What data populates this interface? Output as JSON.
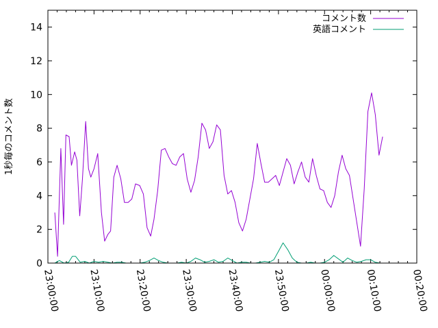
{
  "chart_data": {
    "type": "line",
    "title": "",
    "xlabel": "",
    "ylabel": "1秒毎のコメント数",
    "ylim": [
      0,
      15
    ],
    "yticks": [
      0,
      2,
      4,
      6,
      8,
      10,
      12,
      14
    ],
    "ytick_labels": [
      "0",
      "2",
      "4",
      "6",
      "8",
      "10",
      "12",
      "14"
    ],
    "xlim_minutes": [
      0,
      80
    ],
    "xticks_minutes": [
      0,
      10,
      20,
      30,
      40,
      50,
      60,
      70,
      80
    ],
    "xtick_labels": [
      "23:00:00",
      "23:10:00",
      "23:20:00",
      "23:30:00",
      "23:40:00",
      "23:50:00",
      "00:00:00",
      "00:10:00",
      "00:20:00"
    ],
    "legend_position": "top-right",
    "grid": false,
    "series": [
      {
        "name": "コメント数",
        "color": "#9400d3",
        "x": [
          1.5,
          2.1,
          2.8,
          3.4,
          3.9,
          4.6,
          5.1,
          5.8,
          6.3,
          6.9,
          7.5,
          8.2,
          8.8,
          9.3,
          10.0,
          10.8,
          11.6,
          12.3,
          13.0,
          13.6,
          14.3,
          15.0,
          15.8,
          16.6,
          17.4,
          18.2,
          19.0,
          19.9,
          20.7,
          21.5,
          22.3,
          23.0,
          23.8,
          24.6,
          25.4,
          26.2,
          27.0,
          27.8,
          28.6,
          29.4,
          30.2,
          31.0,
          31.8,
          32.6,
          33.4,
          34.2,
          35.0,
          35.8,
          36.6,
          37.4,
          38.2,
          39.0,
          39.8,
          40.6,
          41.4,
          42.2,
          43.0,
          43.8,
          44.6,
          45.4,
          46.2,
          47.0,
          47.8,
          48.6,
          49.4,
          50.2,
          51.0,
          51.8,
          52.6,
          53.4,
          54.2,
          55.0,
          55.8,
          56.6,
          57.4,
          58.2,
          59.0,
          59.8,
          60.6,
          61.4,
          62.2,
          63.0,
          63.8,
          64.6,
          65.4,
          66.2,
          67.0,
          67.8,
          68.6,
          69.4,
          70.2,
          71.0,
          71.8,
          72.6
        ],
        "values": [
          3.0,
          0.4,
          6.8,
          2.3,
          7.6,
          7.5,
          5.8,
          6.6,
          6.1,
          2.8,
          5.0,
          8.4,
          5.6,
          5.1,
          5.6,
          6.5,
          3.0,
          1.3,
          1.7,
          1.9,
          5.1,
          5.8,
          5.0,
          3.6,
          3.6,
          3.8,
          4.7,
          4.6,
          4.1,
          2.1,
          1.6,
          2.6,
          4.3,
          6.7,
          6.8,
          6.3,
          5.9,
          5.8,
          6.3,
          6.5,
          5.0,
          4.2,
          4.9,
          6.3,
          8.3,
          7.9,
          6.8,
          7.2,
          8.2,
          7.9,
          5.2,
          4.1,
          4.3,
          3.6,
          2.4,
          1.9,
          2.6,
          3.8,
          5.0,
          7.1,
          5.9,
          4.8,
          4.8,
          5.0,
          5.2,
          4.6,
          5.4,
          6.2,
          5.8,
          4.7,
          5.4,
          6.0,
          5.1,
          4.8,
          6.2,
          5.2,
          4.4,
          4.3,
          3.6,
          3.3,
          4.0,
          5.4,
          6.4,
          5.6,
          5.2,
          3.8,
          2.4,
          1.0,
          4.4,
          9.0,
          10.1,
          8.8,
          6.4,
          7.5
        ]
      },
      {
        "name": "英語コメント",
        "color": "#009e73",
        "x": [
          1.5,
          2.5,
          3.5,
          4.5,
          5.3,
          6.0,
          7.0,
          8.0,
          9.0,
          10.0,
          11.0,
          12.0,
          13.0,
          14.0,
          15.0,
          16.0,
          17.0,
          18.0,
          19.0,
          20.0,
          21.0,
          22.0,
          23.0,
          24.0,
          25.0,
          26.0,
          27.0,
          28.0,
          29.0,
          30.0,
          31.0,
          32.0,
          33.0,
          34.0,
          35.0,
          36.0,
          37.0,
          38.0,
          39.0,
          40.0,
          41.0,
          42.0,
          43.0,
          44.0,
          45.0,
          46.0,
          47.0,
          48.0,
          49.0,
          50.0,
          51.0,
          52.0,
          53.0,
          54.0,
          55.0,
          56.0,
          57.0,
          58.0,
          59.0,
          60.0,
          61.0,
          62.0,
          63.0,
          64.0,
          65.0,
          66.0,
          67.0,
          68.0,
          69.0,
          70.0,
          71.0,
          72.0,
          73.0,
          74.0,
          75.0,
          76.0
        ],
        "values": [
          0.0,
          0.15,
          0.0,
          0.05,
          0.4,
          0.4,
          0.05,
          0.1,
          0.0,
          0.1,
          0.05,
          0.1,
          0.05,
          0.0,
          0.05,
          0.05,
          0.0,
          0.0,
          0.0,
          0.0,
          0.05,
          0.15,
          0.3,
          0.15,
          0.05,
          0.0,
          0.0,
          0.0,
          0.05,
          0.0,
          0.1,
          0.3,
          0.2,
          0.05,
          0.1,
          0.2,
          0.05,
          0.1,
          0.3,
          0.15,
          0.0,
          0.05,
          0.05,
          0.0,
          0.0,
          0.05,
          0.1,
          0.05,
          0.2,
          0.7,
          1.2,
          0.8,
          0.3,
          0.05,
          0.0,
          0.0,
          0.05,
          0.0,
          0.0,
          0.05,
          0.2,
          0.45,
          0.25,
          0.05,
          0.3,
          0.15,
          0.05,
          0.1,
          0.2,
          0.2,
          0.05,
          0.0,
          0.0,
          0.0,
          0.0,
          0.0
        ]
      }
    ]
  }
}
